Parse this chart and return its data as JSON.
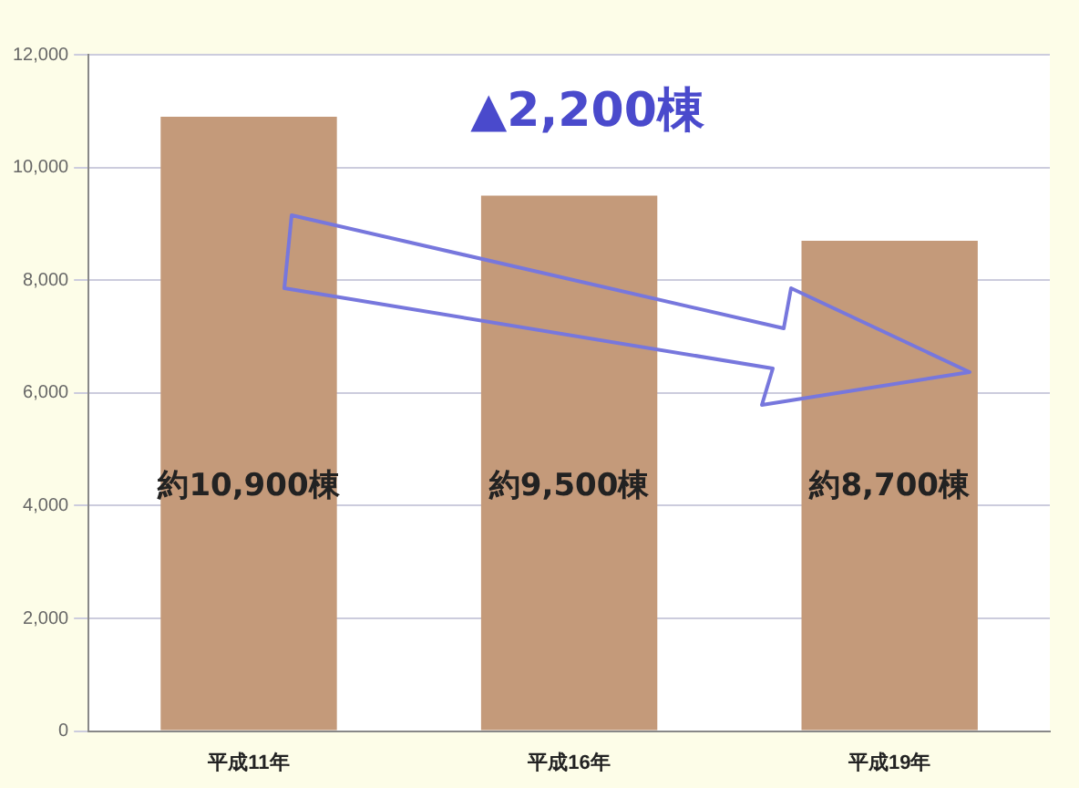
{
  "chart_data": {
    "type": "bar",
    "categories": [
      "平成11年",
      "平成16年",
      "平成19年"
    ],
    "values": [
      10900,
      9500,
      8700
    ],
    "color": "#c49a7a",
    "value_labels": [
      "約10,900棟",
      "約9,500棟",
      "約8,700棟"
    ],
    "annotations": [
      "▲2,200棟"
    ],
    "ylim": [
      0,
      12000
    ],
    "yticks": [
      {
        "value": 0,
        "label": "0"
      },
      {
        "value": 2000,
        "label": "2,000"
      },
      {
        "value": 4000,
        "label": "4,000"
      },
      {
        "value": 6000,
        "label": "6,000"
      },
      {
        "value": 8000,
        "label": "8,000"
      },
      {
        "value": 10000,
        "label": "10,000"
      },
      {
        "value": 12000,
        "label": "12,000"
      }
    ],
    "grid": "y",
    "legend": false
  }
}
